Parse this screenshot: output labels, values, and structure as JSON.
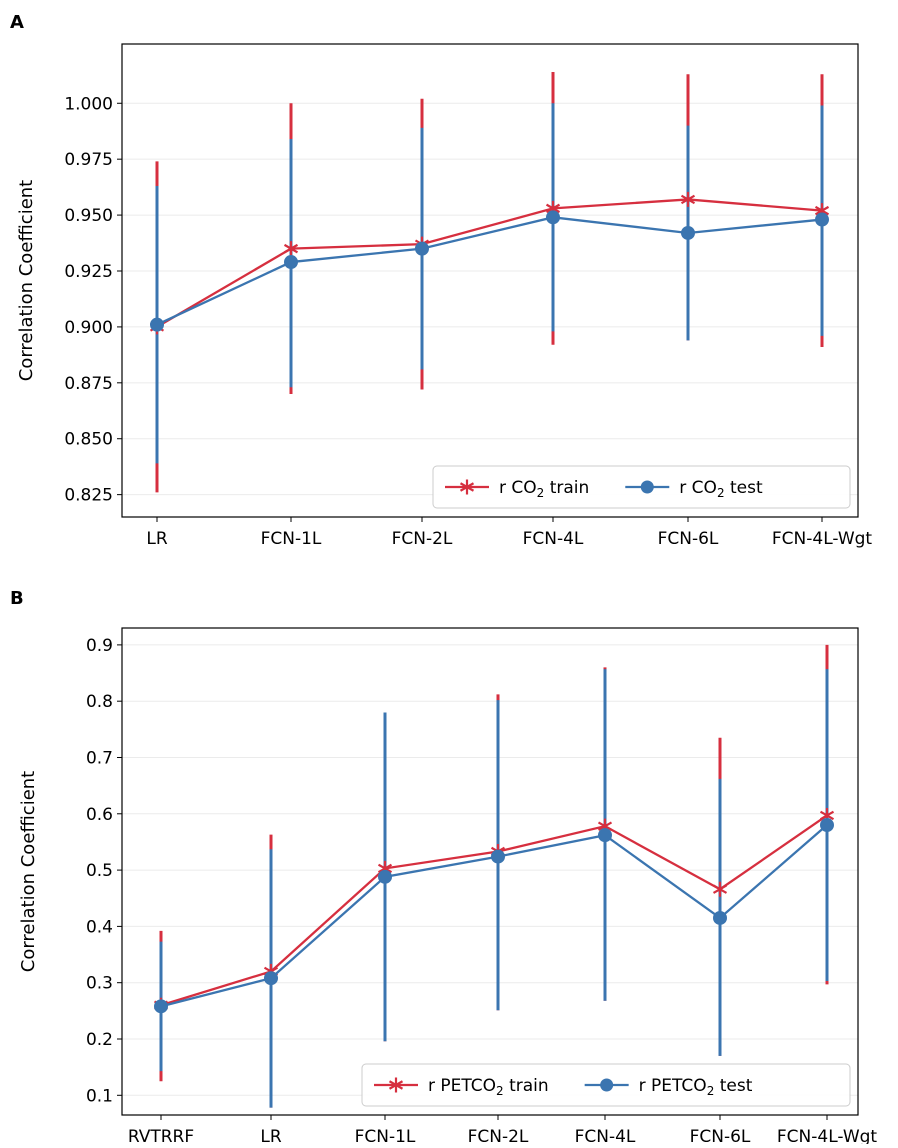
{
  "chart_data": [
    {
      "panel_label": "A",
      "type": "line",
      "title": "",
      "xlabel": "",
      "ylabel": "Correlation Coefficient",
      "ylim": [
        0.815,
        1.0265
      ],
      "yticks": [
        0.825,
        0.85,
        0.875,
        0.9,
        0.925,
        0.95,
        0.975,
        1.0
      ],
      "ytick_labels": [
        "0.825",
        "0.850",
        "0.875",
        "0.900",
        "0.925",
        "0.950",
        "0.975",
        "1.000"
      ],
      "grid": "horizontal",
      "categories": [
        "LR",
        "FCN-1L",
        "FCN-2L",
        "FCN-4L",
        "FCN-6L",
        "FCN-4L-Wgt"
      ],
      "legend_position": "bottom-right",
      "series": [
        {
          "name": "train",
          "legend_prefix": "r CO",
          "legend_sub": "2",
          "legend_suffix": " train",
          "marker": "star",
          "color": "#d62f3f",
          "values": [
            0.9,
            0.935,
            0.937,
            0.953,
            0.957,
            0.952
          ],
          "err_low": [
            0.826,
            0.87,
            0.872,
            0.892,
            0.894,
            0.891
          ],
          "err_high": [
            0.974,
            1.0,
            1.002,
            1.014,
            1.013,
            1.013
          ]
        },
        {
          "name": "test",
          "legend_prefix": "r CO",
          "legend_sub": "2",
          "legend_suffix": " test",
          "marker": "circle",
          "color": "#3b75b0",
          "values": [
            0.901,
            0.929,
            0.935,
            0.949,
            0.942,
            0.948
          ],
          "err_low": [
            0.839,
            0.873,
            0.881,
            0.898,
            0.894,
            0.896
          ],
          "err_high": [
            0.963,
            0.984,
            0.989,
            1.0,
            0.99,
            0.999
          ]
        }
      ]
    },
    {
      "panel_label": "B",
      "type": "line",
      "title": "",
      "xlabel": "",
      "ylabel": "Correlation Coefficient",
      "ylim": [
        0.065,
        0.93
      ],
      "yticks": [
        0.1,
        0.2,
        0.3,
        0.4,
        0.5,
        0.6,
        0.7,
        0.8,
        0.9
      ],
      "ytick_labels": [
        "0.1",
        "0.2",
        "0.3",
        "0.4",
        "0.5",
        "0.6",
        "0.7",
        "0.8",
        "0.9"
      ],
      "grid": "horizontal",
      "categories": [
        "RVTRRF",
        "LR",
        "FCN-1L",
        "FCN-2L",
        "FCN-4L",
        "FCN-6L",
        "FCN-4L-Wgt"
      ],
      "legend_position": "bottom-right",
      "series": [
        {
          "name": "train",
          "legend_prefix": "r PETCO",
          "legend_sub": "2",
          "legend_suffix": " train",
          "marker": "star",
          "color": "#d62f3f",
          "values": [
            0.26,
            0.32,
            0.503,
            0.533,
            0.578,
            0.466,
            0.597
          ],
          "err_low": [
            0.125,
            0.078,
            0.196,
            0.251,
            0.268,
            0.17,
            0.297
          ],
          "err_high": [
            0.392,
            0.563,
            0.78,
            0.812,
            0.86,
            0.735,
            0.9
          ]
        },
        {
          "name": "test",
          "legend_prefix": "r PETCO",
          "legend_sub": "2",
          "legend_suffix": " test",
          "marker": "circle",
          "color": "#3b75b0",
          "values": [
            0.258,
            0.308,
            0.488,
            0.524,
            0.562,
            0.415,
            0.58
          ],
          "err_low": [
            0.143,
            0.078,
            0.196,
            0.251,
            0.268,
            0.17,
            0.303
          ],
          "err_high": [
            0.373,
            0.537,
            0.78,
            0.802,
            0.857,
            0.662,
            0.857
          ]
        }
      ]
    }
  ]
}
